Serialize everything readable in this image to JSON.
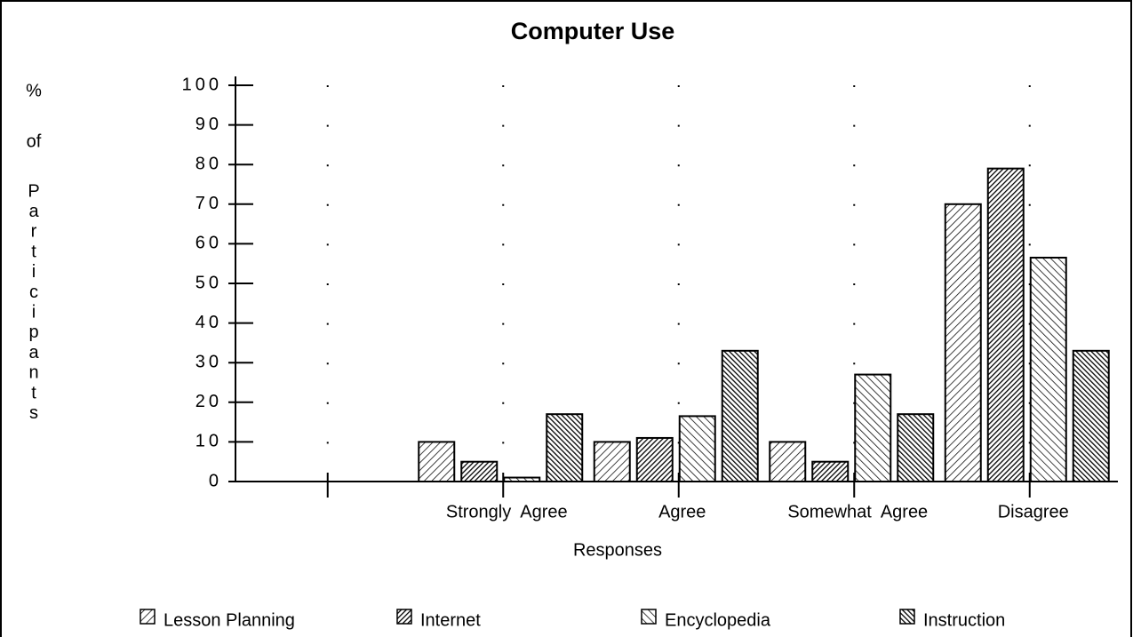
{
  "chart_data": {
    "type": "bar",
    "title": "Computer Use",
    "y_label_lines": [
      "%",
      "of",
      "P",
      "a",
      "r",
      "t",
      "i",
      "c",
      "i",
      "p",
      "a",
      "n",
      "t",
      "s"
    ],
    "x_label": "Responses",
    "categories": [
      null,
      "Strongly  Agree",
      "Agree",
      "Somewhat  Agree",
      "Disagree"
    ],
    "series": [
      {
        "name": "Lesson Planning",
        "color": "#000000",
        "values": [
          null,
          10,
          10,
          10,
          70
        ]
      },
      {
        "name": "Internet",
        "color": "#000000",
        "values": [
          null,
          5,
          11,
          5,
          79
        ]
      },
      {
        "name": "Encyclopedia",
        "color": "#000000",
        "values": [
          null,
          1,
          16.5,
          27,
          56.5
        ]
      },
      {
        "name": "Instruction",
        "color": "#000000",
        "values": [
          null,
          17,
          33,
          17,
          33
        ]
      }
    ],
    "ylim": [
      0,
      100
    ],
    "yticks": [
      0,
      10,
      20,
      30,
      40,
      50,
      60,
      70,
      80,
      90,
      100
    ],
    "grid": true
  }
}
